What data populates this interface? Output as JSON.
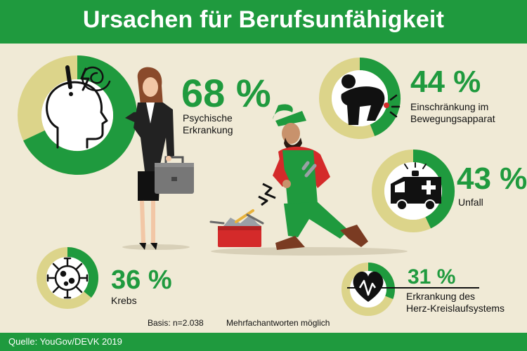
{
  "title": "Ursachen für Berufsunfähigkeit",
  "source": "Quelle: YouGov/DEVK 2019",
  "basis": "Basis: n=2.038",
  "note": "Mehrfachantworten möglich",
  "colors": {
    "green": "#1f9a3e",
    "yellow": "#dcd48a",
    "background": "#f0ead6"
  },
  "chart_data": {
    "type": "pie",
    "categories": [
      "Psychische Erkrankung",
      "Einschränkung im Bewegungsapparat",
      "Unfall",
      "Krebs",
      "Erkrankung des Herz-Kreislaufsystems"
    ],
    "values": [
      68,
      44,
      43,
      36,
      31
    ],
    "unit": "%",
    "items": [
      {
        "key": "psych",
        "pct": "68 %",
        "value": 68,
        "label_lines": [
          "Psychische",
          "Erkrankung"
        ],
        "icon": "head-stress-icon"
      },
      {
        "key": "bewegung",
        "pct": "44 %",
        "value": 44,
        "label_lines": [
          "Einschränkung im",
          "Bewegungsapparat"
        ],
        "icon": "back-pain-icon"
      },
      {
        "key": "unfall",
        "pct": "43 %",
        "value": 43,
        "label_lines": [
          "Unfall"
        ],
        "icon": "ambulance-icon"
      },
      {
        "key": "krebs",
        "pct": "36 %",
        "value": 36,
        "label_lines": [
          "Krebs"
        ],
        "icon": "cancer-cell-icon"
      },
      {
        "key": "herz",
        "pct": "31 %",
        "value": 31,
        "label_lines": [
          "Erkrankung des",
          "Herz-Kreislaufsystems"
        ],
        "icon": "heartbeat-icon"
      }
    ]
  }
}
